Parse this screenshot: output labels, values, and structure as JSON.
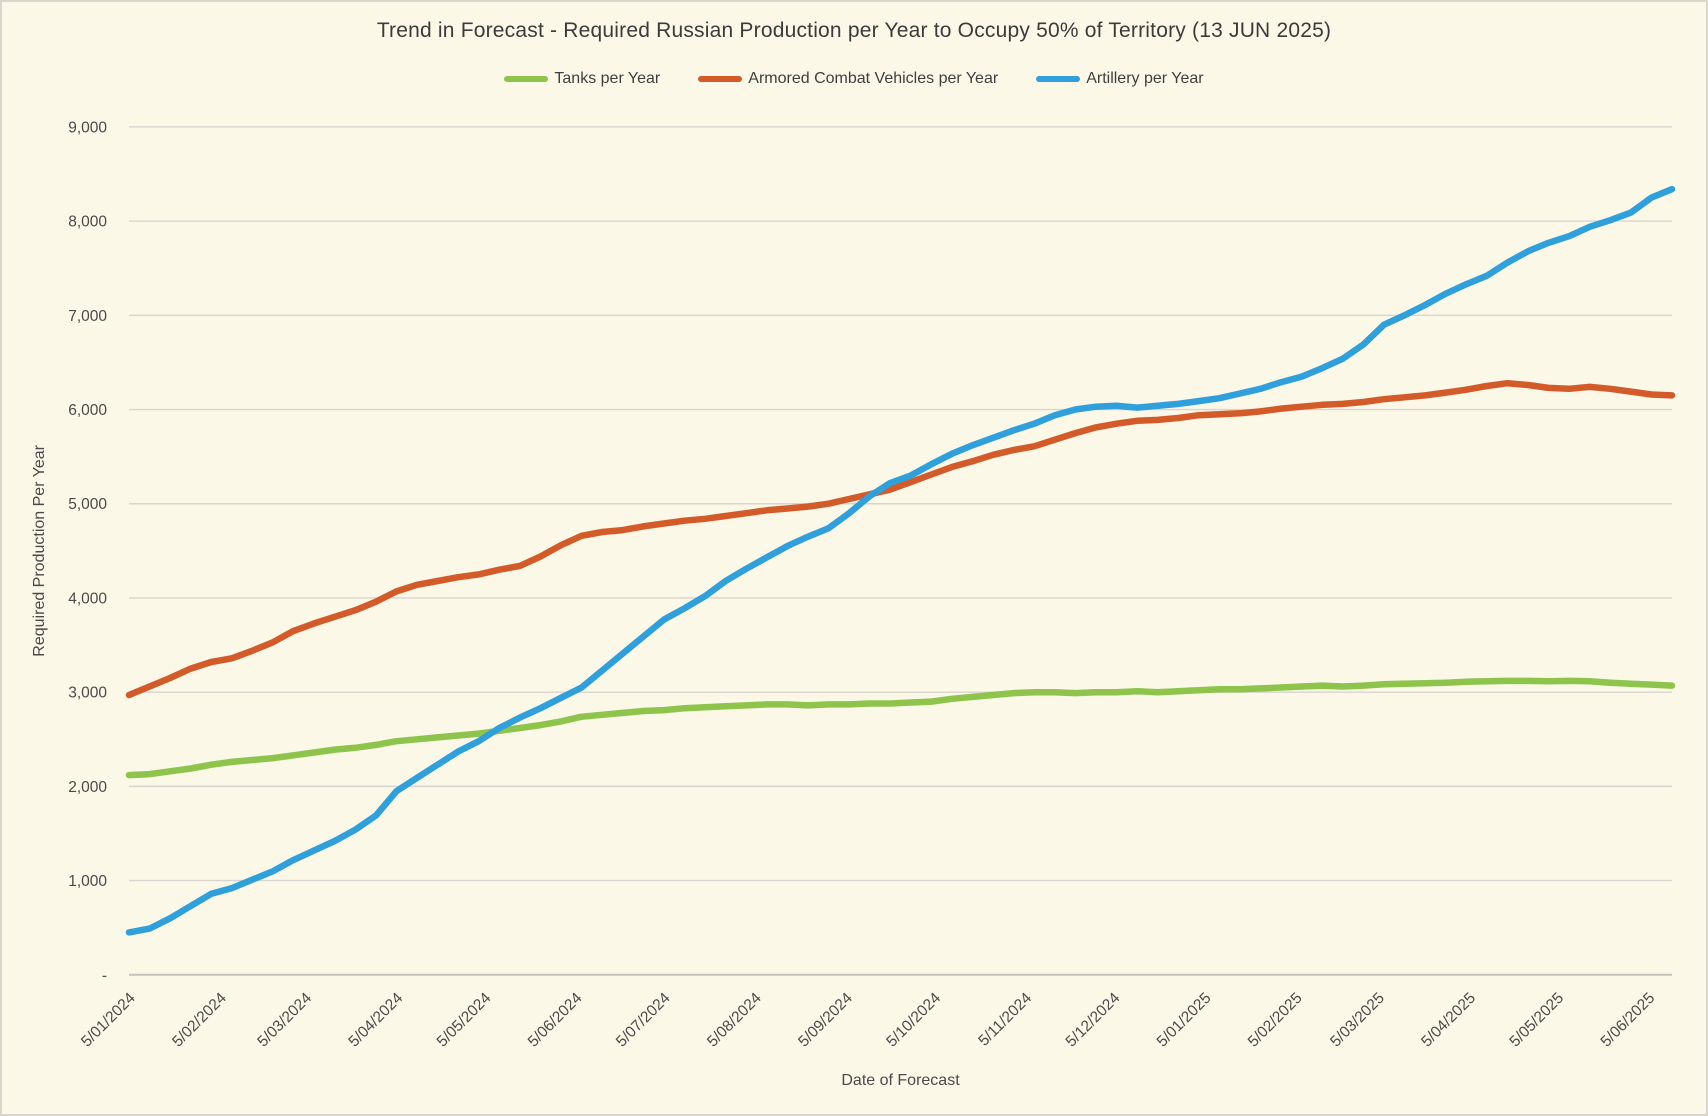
{
  "title": "Trend in Forecast - Required Russian Production per Year to Occupy 50% of Territory (13 JUN 2025)",
  "colors": {
    "background": "#FCF8E8",
    "gridline": "#d7d5cf",
    "axis_line": "#c3c1ba",
    "tick_text": "#4a4a4a",
    "title_text": "#3b3b3b"
  },
  "chart_data": {
    "type": "line",
    "title": "Trend in Forecast - Required Russian Production per Year to Occupy 50% of Territory (13 JUN 2025)",
    "xlabel": "Date of Forecast",
    "ylabel": "Required Production Per Year",
    "ylim": [
      0,
      9000
    ],
    "grid": "horizontal",
    "legend_position": "top",
    "yticks": [
      {
        "value": 0,
        "label": "-"
      },
      {
        "value": 1000,
        "label": "1,000"
      },
      {
        "value": 2000,
        "label": "2,000"
      },
      {
        "value": 3000,
        "label": "3,000"
      },
      {
        "value": 4000,
        "label": "4,000"
      },
      {
        "value": 5000,
        "label": "5,000"
      },
      {
        "value": 6000,
        "label": "6,000"
      },
      {
        "value": 7000,
        "label": "7,000"
      },
      {
        "value": 8000,
        "label": "8,000"
      },
      {
        "value": 9000,
        "label": "9,000"
      }
    ],
    "x_start": "2024-01-05",
    "x_end": "2025-06-13",
    "xticks": [
      {
        "date": "2024-01-05",
        "label": "5/01/2024"
      },
      {
        "date": "2024-02-05",
        "label": "5/02/2024"
      },
      {
        "date": "2024-03-05",
        "label": "5/03/2024"
      },
      {
        "date": "2024-04-05",
        "label": "5/04/2024"
      },
      {
        "date": "2024-05-05",
        "label": "5/05/2024"
      },
      {
        "date": "2024-06-05",
        "label": "5/06/2024"
      },
      {
        "date": "2024-07-05",
        "label": "5/07/2024"
      },
      {
        "date": "2024-08-05",
        "label": "5/08/2024"
      },
      {
        "date": "2024-09-05",
        "label": "5/09/2024"
      },
      {
        "date": "2024-10-05",
        "label": "5/10/2024"
      },
      {
        "date": "2024-11-05",
        "label": "5/11/2024"
      },
      {
        "date": "2024-12-05",
        "label": "5/12/2024"
      },
      {
        "date": "2025-01-05",
        "label": "5/01/2025"
      },
      {
        "date": "2025-02-05",
        "label": "5/02/2025"
      },
      {
        "date": "2025-03-05",
        "label": "5/03/2025"
      },
      {
        "date": "2025-04-05",
        "label": "5/04/2025"
      },
      {
        "date": "2025-05-05",
        "label": "5/05/2025"
      },
      {
        "date": "2025-06-05",
        "label": "5/06/2025"
      }
    ],
    "dates": [
      "2024-01-05",
      "2024-01-12",
      "2024-01-19",
      "2024-01-26",
      "2024-02-02",
      "2024-02-09",
      "2024-02-16",
      "2024-02-23",
      "2024-03-01",
      "2024-03-08",
      "2024-03-15",
      "2024-03-22",
      "2024-03-29",
      "2024-04-05",
      "2024-04-12",
      "2024-04-19",
      "2024-04-26",
      "2024-05-03",
      "2024-05-10",
      "2024-05-17",
      "2024-05-24",
      "2024-05-31",
      "2024-06-07",
      "2024-06-14",
      "2024-06-21",
      "2024-06-28",
      "2024-07-05",
      "2024-07-12",
      "2024-07-19",
      "2024-07-26",
      "2024-08-02",
      "2024-08-09",
      "2024-08-16",
      "2024-08-23",
      "2024-08-30",
      "2024-09-06",
      "2024-09-13",
      "2024-09-20",
      "2024-09-27",
      "2024-10-04",
      "2024-10-11",
      "2024-10-18",
      "2024-10-25",
      "2024-11-01",
      "2024-11-08",
      "2024-11-15",
      "2024-11-22",
      "2024-11-29",
      "2024-12-06",
      "2024-12-13",
      "2024-12-20",
      "2024-12-27",
      "2025-01-03",
      "2025-01-10",
      "2025-01-17",
      "2025-01-24",
      "2025-01-31",
      "2025-02-07",
      "2025-02-14",
      "2025-02-21",
      "2025-02-28",
      "2025-03-07",
      "2025-03-14",
      "2025-03-21",
      "2025-03-28",
      "2025-04-04",
      "2025-04-11",
      "2025-04-18",
      "2025-04-25",
      "2025-05-02",
      "2025-05-09",
      "2025-05-16",
      "2025-05-23",
      "2025-05-30",
      "2025-06-06",
      "2025-06-13"
    ],
    "series": [
      {
        "name": "Tanks per Year",
        "color": "#8EC44C",
        "values": [
          2120,
          2130,
          2160,
          2190,
          2230,
          2260,
          2280,
          2300,
          2330,
          2360,
          2390,
          2410,
          2440,
          2480,
          2500,
          2520,
          2540,
          2560,
          2590,
          2620,
          2650,
          2690,
          2740,
          2760,
          2780,
          2800,
          2810,
          2830,
          2840,
          2850,
          2860,
          2870,
          2870,
          2860,
          2870,
          2870,
          2880,
          2880,
          2890,
          2900,
          2930,
          2950,
          2970,
          2990,
          3000,
          3000,
          2990,
          3000,
          3000,
          3010,
          3000,
          3010,
          3020,
          3030,
          3030,
          3040,
          3050,
          3060,
          3070,
          3060,
          3070,
          3085,
          3090,
          3095,
          3100,
          3110,
          3115,
          3120,
          3120,
          3115,
          3120,
          3115,
          3100,
          3090,
          3080,
          3070
        ]
      },
      {
        "name": "Armored Combat Vehicles per Year",
        "color": "#D35B2A",
        "values": [
          2970,
          3060,
          3150,
          3250,
          3320,
          3360,
          3440,
          3530,
          3650,
          3730,
          3800,
          3870,
          3960,
          4070,
          4140,
          4180,
          4220,
          4250,
          4300,
          4340,
          4440,
          4560,
          4660,
          4700,
          4720,
          4760,
          4790,
          4820,
          4840,
          4870,
          4900,
          4930,
          4950,
          4970,
          5000,
          5050,
          5100,
          5150,
          5230,
          5310,
          5390,
          5450,
          5520,
          5570,
          5610,
          5680,
          5750,
          5810,
          5850,
          5880,
          5890,
          5910,
          5940,
          5950,
          5960,
          5980,
          6010,
          6030,
          6050,
          6060,
          6080,
          6110,
          6130,
          6150,
          6180,
          6210,
          6250,
          6280,
          6260,
          6230,
          6220,
          6240,
          6220,
          6190,
          6160,
          6150
        ]
      },
      {
        "name": "Artillery per Year",
        "color": "#2FA0DC",
        "values": [
          450,
          490,
          600,
          730,
          860,
          920,
          1010,
          1100,
          1220,
          1320,
          1420,
          1540,
          1690,
          1950,
          2090,
          2230,
          2370,
          2480,
          2620,
          2730,
          2830,
          2940,
          3050,
          3230,
          3410,
          3590,
          3770,
          3890,
          4020,
          4180,
          4310,
          4430,
          4550,
          4650,
          4740,
          4900,
          5080,
          5220,
          5300,
          5420,
          5530,
          5620,
          5700,
          5780,
          5850,
          5940,
          6000,
          6030,
          6040,
          6020,
          6040,
          6060,
          6090,
          6120,
          6170,
          6220,
          6290,
          6350,
          6440,
          6540,
          6690,
          6900,
          7000,
          7110,
          7230,
          7330,
          7420,
          7560,
          7680,
          7770,
          7840,
          7940,
          8010,
          8090,
          8250,
          8340
        ]
      }
    ]
  }
}
